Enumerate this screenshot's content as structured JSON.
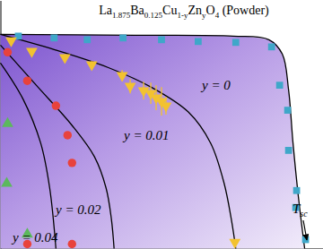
{
  "chart_data": {
    "type": "scatter",
    "title": [
      {
        "text": "La"
      },
      {
        "text": "1.875",
        "sub": true
      },
      {
        "text": "Ba"
      },
      {
        "text": "0.125",
        "sub": true
      },
      {
        "text": "Cu"
      },
      {
        "text": "1-y",
        "sub": true
      },
      {
        "text": "Zn"
      },
      {
        "text": "y",
        "sub": true
      },
      {
        "text": "O"
      },
      {
        "text": "4",
        "sub": true
      },
      {
        "text": " (Powder)"
      }
    ],
    "xlim": [
      0,
      360
    ],
    "ylim": [
      0,
      278
    ],
    "xticks": [],
    "yticks": [],
    "tick_labels": false,
    "grid": false,
    "series": [
      {
        "name": "y = 0",
        "color": "#3fa7c9",
        "marker": "square",
        "x": [
          20,
          60,
          97,
          137,
          180,
          221,
          263,
          303,
          312,
          321,
          322,
          331,
          330,
          341
        ],
        "values": [
          238,
          236,
          234,
          236,
          234,
          232,
          231,
          226,
          183,
          155,
          110,
          65,
          46,
          10
        ],
        "curve": {
          "x": [
            0,
            150,
            260,
            300,
            315,
            322,
            327,
            333,
            340
          ],
          "values": [
            240,
            239,
            238,
            234,
            218,
            178,
            118,
            58,
            0
          ]
        }
      },
      {
        "name": "y = 0.01",
        "color": "#f2c230",
        "marker": "triangle-down",
        "x": [
          12,
          35,
          72,
          102,
          136,
          145,
          160,
          168,
          174,
          180,
          185,
          262
        ],
        "values": [
          233,
          221,
          214,
          206,
          194,
          182,
          177,
          174,
          169,
          165,
          160,
          7
        ],
        "errors": [
          0,
          0,
          4,
          4,
          6,
          8,
          10,
          12,
          14,
          16,
          10,
          0
        ],
        "curve": {
          "x": [
            0,
            60,
            120,
            170,
            210,
            235,
            250,
            258,
            263
          ],
          "values": [
            240,
            223,
            203,
            180,
            153,
            118,
            73,
            33,
            0
          ]
        }
      },
      {
        "name": "y = 0.02",
        "color": "#e8423c",
        "marker": "circle",
        "x": [
          8,
          30,
          62,
          75,
          80,
          80,
          30
        ],
        "values": [
          220,
          188,
          160,
          127,
          96,
          5,
          5
        ],
        "curve": {
          "x": [
            0,
            40,
            80,
            105,
            118,
            124,
            127
          ],
          "values": [
            228,
            183,
            138,
            103,
            68,
            33,
            0
          ]
        }
      },
      {
        "name": "y = 0.04",
        "color": "#5cb85c",
        "marker": "triangle",
        "x": [
          8,
          7,
          30
        ],
        "values": [
          140,
          73,
          16
        ],
        "curve": {
          "x": [
            0,
            25,
            45,
            55,
            62
          ],
          "values": [
            208,
            168,
            118,
            68,
            0
          ]
        }
      }
    ],
    "annotations": [
      {
        "text": "T",
        "subscript": "sc"
      }
    ]
  }
}
